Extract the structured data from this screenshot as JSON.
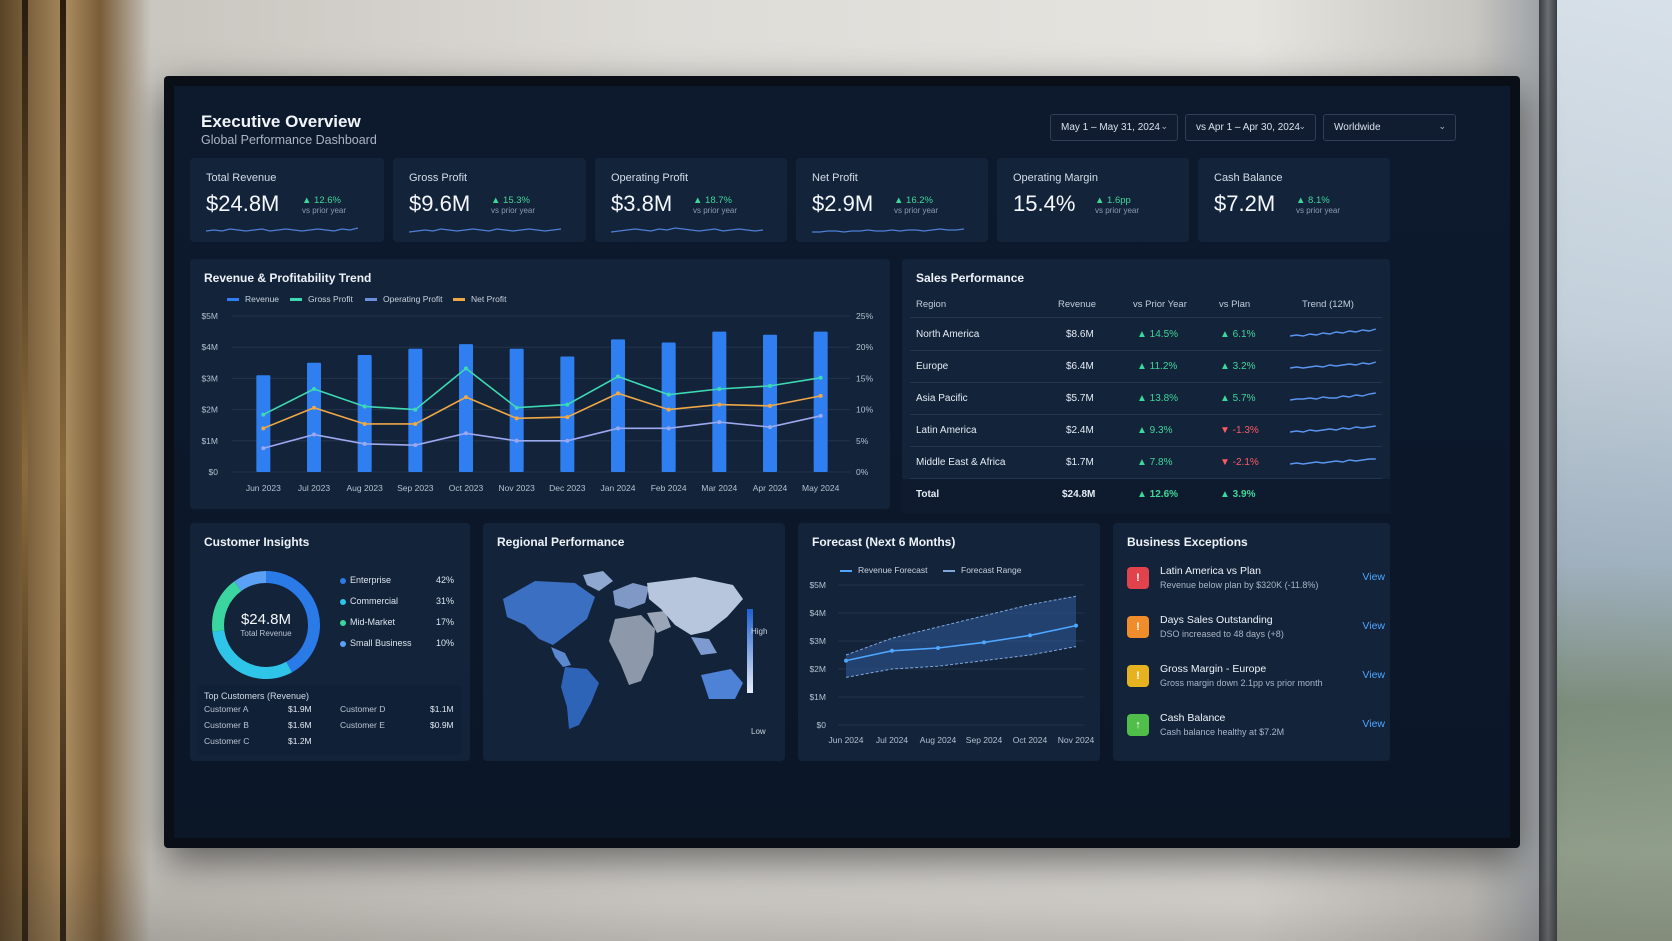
{
  "header": {
    "title": "Executive Overview",
    "subtitle": "Global Performance Dashboard",
    "date_range": "May 1 – May 31, 2024",
    "compare_range": "vs Apr 1 – Apr 30, 2024",
    "region": "Worldwide"
  },
  "kpis": [
    {
      "label": "Total Revenue",
      "value": "$24.8M",
      "change": "▲ 12.6%",
      "compare": "vs prior year"
    },
    {
      "label": "Gross Profit",
      "value": "$9.6M",
      "change": "▲ 15.3%",
      "compare": "vs prior year"
    },
    {
      "label": "Operating Profit",
      "value": "$3.8M",
      "change": "▲ 18.7%",
      "compare": "vs prior year"
    },
    {
      "label": "Net Profit",
      "value": "$2.9M",
      "change": "▲ 16.2%",
      "compare": "vs prior year"
    },
    {
      "label": "Operating Margin",
      "value": "15.4%",
      "change": "▲ 1.6pp",
      "compare": "vs prior year"
    },
    {
      "label": "Cash Balance",
      "value": "$7.2M",
      "change": "▲ 8.1%",
      "compare": "vs prior year"
    }
  ],
  "trend_panel": {
    "title": "Revenue & Profitability Trend",
    "legend": [
      "Revenue",
      "Gross Profit",
      "Operating Profit",
      "Net Profit"
    ]
  },
  "sales": {
    "title": "Sales Performance",
    "headers": [
      "Region",
      "Revenue",
      "vs Prior Year",
      "vs Plan",
      "Trend (12M)"
    ],
    "rows": [
      {
        "region": "North America",
        "revenue": "$8.6M",
        "yoy": "▲ 14.5%",
        "plan": "▲ 6.1%",
        "plan_dir": "up"
      },
      {
        "region": "Europe",
        "revenue": "$6.4M",
        "yoy": "▲ 11.2%",
        "plan": "▲ 3.2%",
        "plan_dir": "up"
      },
      {
        "region": "Asia Pacific",
        "revenue": "$5.7M",
        "yoy": "▲ 13.8%",
        "plan": "▲ 5.7%",
        "plan_dir": "up"
      },
      {
        "region": "Latin America",
        "revenue": "$2.4M",
        "yoy": "▲ 9.3%",
        "plan": "▼ -1.3%",
        "plan_dir": "down"
      },
      {
        "region": "Middle East & Africa",
        "revenue": "$1.7M",
        "yoy": "▲ 7.8%",
        "plan": "▼ -2.1%",
        "plan_dir": "down"
      }
    ],
    "total": {
      "region": "Total",
      "revenue": "$24.8M",
      "yoy": "▲ 12.6%",
      "plan": "▲ 3.9%"
    }
  },
  "customer": {
    "title": "Customer Insights",
    "center_value": "$24.8M",
    "center_label": "Total Revenue",
    "segments": [
      {
        "name": "Enterprise",
        "pct": "42%"
      },
      {
        "name": "Commercial",
        "pct": "31%"
      },
      {
        "name": "Mid-Market",
        "pct": "17%"
      },
      {
        "name": "Small Business",
        "pct": "10%"
      }
    ],
    "top_title": "Top Customers (Revenue)",
    "top": [
      {
        "name": "Customer A",
        "value": "$1.9M"
      },
      {
        "name": "Customer B",
        "value": "$1.6M"
      },
      {
        "name": "Customer C",
        "value": "$1.2M"
      },
      {
        "name": "Customer D",
        "value": "$1.1M"
      },
      {
        "name": "Customer E",
        "value": "$0.9M"
      }
    ]
  },
  "regional": {
    "title": "Regional Performance",
    "scale_high": "High",
    "scale_low": "Low"
  },
  "forecast_panel": {
    "title": "Forecast (Next 6 Months)",
    "legend": [
      "Revenue Forecast",
      "Forecast Range"
    ]
  },
  "exceptions": {
    "title": "Business Exceptions",
    "items": [
      {
        "icon": "alert-icon",
        "glyph": "!",
        "color": "#e0434b",
        "title": "Latin America vs Plan",
        "desc": "Revenue below plan by $320K (-11.8%)",
        "link": "View"
      },
      {
        "icon": "clock-icon",
        "glyph": "!",
        "color": "#f08c2a",
        "title": "Days Sales Outstanding",
        "desc": "DSO increased to 48 days (+8)",
        "link": "View"
      },
      {
        "icon": "warning-icon",
        "glyph": "!",
        "color": "#e7b21f",
        "title": "Gross Margin - Europe",
        "desc": "Gross margin down 2.1pp vs prior month",
        "link": "View"
      },
      {
        "icon": "arrow-up-icon",
        "glyph": "↑",
        "color": "#4fbf4a",
        "title": "Cash Balance",
        "desc": "Cash balance healthy at $7.2M",
        "link": "View"
      }
    ]
  },
  "colors": {
    "revenue": "#2f7ff0",
    "gross": "#3ed9b4",
    "operating": "#9ca8f0",
    "net": "#f0a847",
    "up": "#3ed79a",
    "down": "#ff5b62"
  },
  "chart_data": [
    {
      "type": "bar",
      "categories": [
        "Jun 2023",
        "Jul 2023",
        "Aug 2023",
        "Sep 2023",
        "Oct 2023",
        "Nov 2023",
        "Dec 2023",
        "Jan 2024",
        "Feb 2024",
        "Mar 2024",
        "Apr 2024",
        "May 2024"
      ],
      "y_ticks": [
        "$0",
        "$1M",
        "$2M",
        "$3M",
        "$4M",
        "$5M"
      ],
      "y2_ticks": [
        "0%",
        "5%",
        "10%",
        "15%",
        "20%",
        "25%"
      ],
      "ylim": [
        0,
        5
      ],
      "y2lim": [
        0,
        25
      ],
      "series": [
        {
          "name": "Revenue",
          "axis": "left",
          "kind": "bar",
          "values": [
            3.1,
            3.5,
            3.75,
            3.95,
            4.1,
            3.95,
            3.7,
            4.25,
            4.15,
            4.5,
            4.4,
            4.5
          ]
        },
        {
          "name": "Gross Profit",
          "axis": "right",
          "kind": "line",
          "values": [
            9.2,
            13.3,
            10.5,
            10.0,
            16.6,
            10.3,
            10.8,
            15.3,
            12.4,
            13.3,
            13.8,
            15.1
          ]
        },
        {
          "name": "Operating Profit",
          "axis": "right",
          "kind": "line",
          "values": [
            3.8,
            6.0,
            4.5,
            4.3,
            6.2,
            5.0,
            5.0,
            7.0,
            7.0,
            8.0,
            7.2,
            9.0
          ]
        },
        {
          "name": "Net Profit",
          "axis": "right",
          "kind": "line",
          "values": [
            7.0,
            10.3,
            7.7,
            7.7,
            12.0,
            8.6,
            8.8,
            12.6,
            10.0,
            10.8,
            10.6,
            12.2
          ]
        }
      ]
    },
    {
      "type": "pie",
      "categories": [
        "Enterprise",
        "Commercial",
        "Mid-Market",
        "Small Business"
      ],
      "values": [
        42,
        31,
        17,
        10
      ]
    },
    {
      "type": "line",
      "categories": [
        "Jun 2024",
        "Jul 2024",
        "Aug 2024",
        "Sep 2024",
        "Oct 2024",
        "Nov 2024"
      ],
      "y_ticks": [
        "$0",
        "$1M",
        "$2M",
        "$3M",
        "$4M",
        "$5M"
      ],
      "ylim": [
        0,
        5
      ],
      "series": [
        {
          "name": "Revenue Forecast",
          "values": [
            2.3,
            2.65,
            2.75,
            2.95,
            3.2,
            3.55
          ]
        },
        {
          "name": "Forecast Range Upper",
          "values": [
            2.5,
            3.1,
            3.5,
            3.9,
            4.3,
            4.6
          ]
        },
        {
          "name": "Forecast Range Lower",
          "values": [
            1.7,
            2.0,
            2.1,
            2.3,
            2.5,
            2.8
          ]
        }
      ]
    }
  ]
}
